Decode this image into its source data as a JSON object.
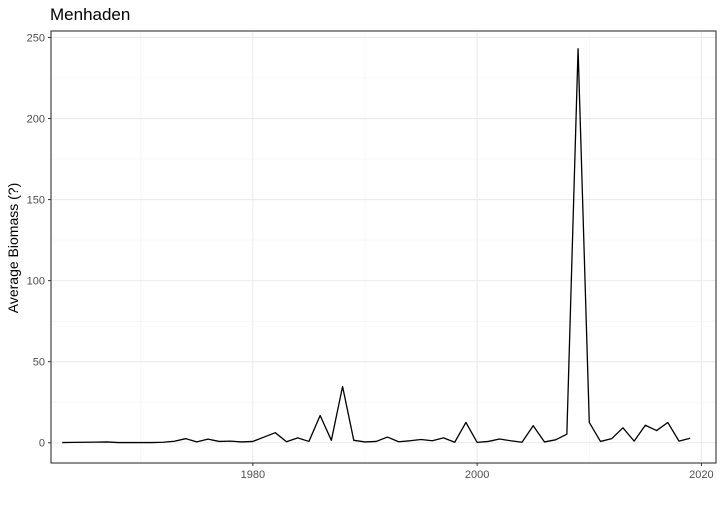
{
  "chart_data": {
    "type": "line",
    "title": "Menhaden",
    "xlabel": "",
    "ylabel": "Average Biomass (?)",
    "xlim": [
      1962.0,
      2021.3
    ],
    "ylim": [
      -12.5,
      254
    ],
    "x_ticks": [
      1980,
      2000,
      2020
    ],
    "x_tick_labels": [
      "1980",
      "2000",
      "2020"
    ],
    "y_ticks": [
      0,
      50,
      100,
      150,
      200,
      250
    ],
    "y_tick_labels": [
      "0",
      "50",
      "100",
      "150",
      "200",
      "250"
    ],
    "grid": true,
    "legend": "none",
    "series": [
      {
        "color": "#000000",
        "x": [
          1963,
          1964,
          1965,
          1966,
          1967,
          1968,
          1969,
          1970,
          1971,
          1972,
          1973,
          1974,
          1975,
          1976,
          1977,
          1978,
          1979,
          1980,
          1981,
          1982,
          1983,
          1984,
          1985,
          1986,
          1987,
          1988,
          1989,
          1990,
          1991,
          1992,
          1993,
          1994,
          1995,
          1996,
          1997,
          1998,
          1999,
          2000,
          2001,
          2002,
          2003,
          2004,
          2005,
          2006,
          2007,
          2008,
          2009,
          2010,
          2011,
          2012,
          2013,
          2014,
          2015,
          2016,
          2017,
          2018,
          2019
        ],
        "y": [
          0.1,
          0.2,
          0.3,
          0.4,
          0.5,
          0.1,
          0.1,
          0.1,
          0.1,
          0.3,
          0.9,
          2.5,
          0.5,
          2.2,
          0.8,
          1.0,
          0.5,
          0.8,
          3.5,
          6.2,
          0.6,
          3.0,
          0.8,
          16.8,
          1.5,
          34.7,
          1.5,
          0.5,
          0.8,
          3.5,
          0.6,
          1.2,
          2.0,
          1.2,
          3.0,
          0.3,
          12.5,
          0.2,
          0.8,
          2.3,
          1.2,
          0.3,
          10.5,
          0.5,
          1.8,
          5.3,
          243.0,
          12.5,
          0.8,
          2.5,
          9.2,
          1.0,
          10.8,
          7.5,
          12.5,
          1.0,
          2.8
        ]
      }
    ]
  }
}
